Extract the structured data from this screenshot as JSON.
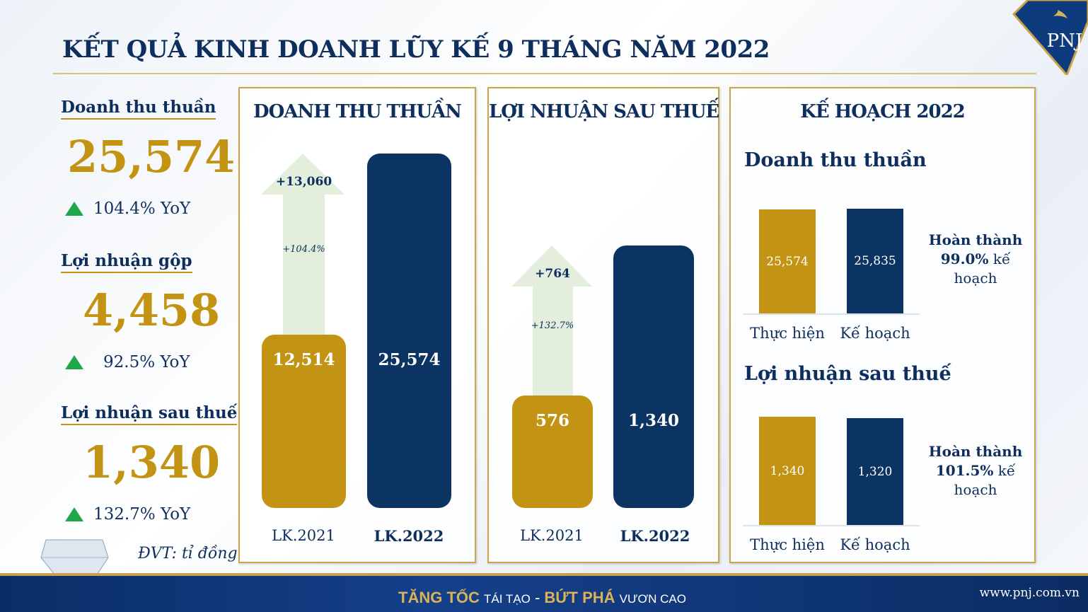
{
  "title": "KẾT QUẢ KINH DOANH LŨY KẾ 9 THÁNG NĂM 2022",
  "logo": "PNJ",
  "kpis": [
    {
      "label": "Doanh thu thuần",
      "value": "25,574",
      "yoy": "104.4% YoY"
    },
    {
      "label": "Lợi nhuận gộp",
      "value": "4,458",
      "yoy": "92.5% YoY"
    },
    {
      "label": "Lợi nhuận sau thuế",
      "value": "1,340",
      "yoy": "132.7% YoY"
    }
  ],
  "unit": "ĐVT: tỉ đồng",
  "footer": {
    "slogan_1": "TĂNG TỐC",
    "slogan_2": "TÁI TẠO",
    "sep": "-",
    "slogan_3": "BỨT PHÁ",
    "slogan_4": "VƯƠN CAO",
    "url": "www.pnj.com.vn"
  },
  "colors": {
    "gold": "#c39414",
    "navy": "#0b3463",
    "up": "#1fa84a"
  },
  "chart_data": [
    {
      "type": "bar",
      "title": "DOANH THU THUẦN",
      "categories": [
        "LK.2021",
        "LK.2022"
      ],
      "values": [
        12514,
        25574
      ],
      "labels": [
        "12,514",
        "25,574"
      ],
      "delta": "+13,060",
      "delta_pct": "+104.4%"
    },
    {
      "type": "bar",
      "title": "LỢI NHUẬN SAU THUẾ",
      "categories": [
        "LK.2021",
        "LK.2022"
      ],
      "values": [
        576,
        1340
      ],
      "labels": [
        "576",
        "1,340"
      ],
      "delta": "+764",
      "delta_pct": "+132.7%"
    },
    {
      "type": "bar",
      "title": "KẾ HOẠCH 2022",
      "subcharts": [
        {
          "subtitle": "Doanh thu thuần",
          "categories": [
            "Thực hiện",
            "Kế hoạch"
          ],
          "values": [
            25574,
            25835
          ],
          "labels": [
            "25,574",
            "25,835"
          ],
          "completion_label": "Hoàn thành",
          "completion": "99.0%",
          "completion_suffix": "kế hoạch"
        },
        {
          "subtitle": "Lợi nhuận sau thuế",
          "categories": [
            "Thực hiện",
            "Kế hoạch"
          ],
          "values": [
            1340,
            1320
          ],
          "labels": [
            "1,340",
            "1,320"
          ],
          "completion_label": "Hoàn thành",
          "completion": "101.5%",
          "completion_suffix": "kế hoạch"
        }
      ]
    }
  ]
}
